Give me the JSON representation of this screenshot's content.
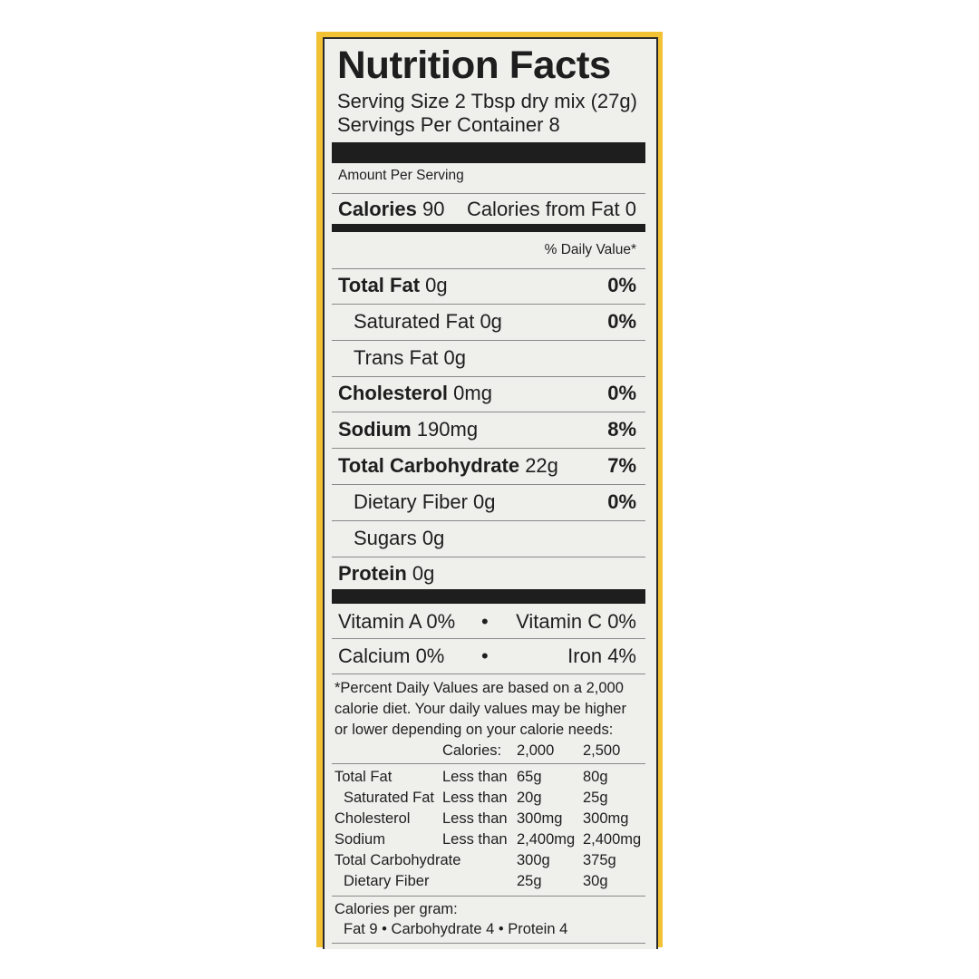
{
  "label": {
    "title": "Nutrition Facts",
    "serving_size": "Serving Size 2 Tbsp dry mix (27g)",
    "servings_per_container": "Servings Per Container 8",
    "amount_per_serving": "Amount Per Serving",
    "calories_label": "Calories",
    "calories_value": "90",
    "calories_from_fat": "Calories from Fat 0",
    "daily_value_header": "% Daily Value*",
    "nutrients": [
      {
        "name": "Total Fat",
        "amount": "0g",
        "dv": "0%"
      },
      {
        "name": "Saturated Fat",
        "amount": "0g",
        "dv": "0%"
      },
      {
        "name": "Trans Fat",
        "amount": "0g",
        "dv": ""
      },
      {
        "name": "Cholesterol",
        "amount": "0mg",
        "dv": "0%"
      },
      {
        "name": "Sodium",
        "amount": "190mg",
        "dv": "8%"
      },
      {
        "name": "Total Carbohydrate",
        "amount": "22g",
        "dv": "7%"
      },
      {
        "name": "Dietary Fiber",
        "amount": "0g",
        "dv": "0%"
      },
      {
        "name": "Sugars",
        "amount": "0g",
        "dv": ""
      },
      {
        "name": "Protein",
        "amount": "0g",
        "dv": ""
      }
    ],
    "vitamins": {
      "vitamin_a": "Vitamin A 0%",
      "vitamin_c": "Vitamin C 0%",
      "calcium": "Calcium 0%",
      "iron": "Iron 4%",
      "bullet": "•"
    },
    "footnote": [
      "*Percent Daily Values are based on a 2,000",
      "calorie diet. Your daily values may be higher",
      "or lower depending on your calorie needs:"
    ],
    "dv_table": {
      "header": [
        "Calories:",
        "2,000",
        "2,500"
      ],
      "rows": [
        [
          "Total Fat",
          "Less than",
          "65g",
          "80g"
        ],
        [
          "Saturated Fat",
          "Less than",
          "20g",
          "25g"
        ],
        [
          "Cholesterol",
          "Less than",
          "300mg",
          "300mg"
        ],
        [
          "Sodium",
          "Less than",
          "2,400mg",
          "2,400mg"
        ],
        [
          "Total Carbohydrate",
          "",
          "300g",
          "375g"
        ],
        [
          "Dietary Fiber",
          "",
          "25g",
          "30g"
        ]
      ]
    },
    "calories_per_gram_label": "Calories per gram:",
    "calories_per_gram": "Fat 9 • Carbohydrate 4 • Protein 4"
  },
  "colors": {
    "border": "#f2c234",
    "panel": "#efefec",
    "ink": "#1e1e1e"
  }
}
